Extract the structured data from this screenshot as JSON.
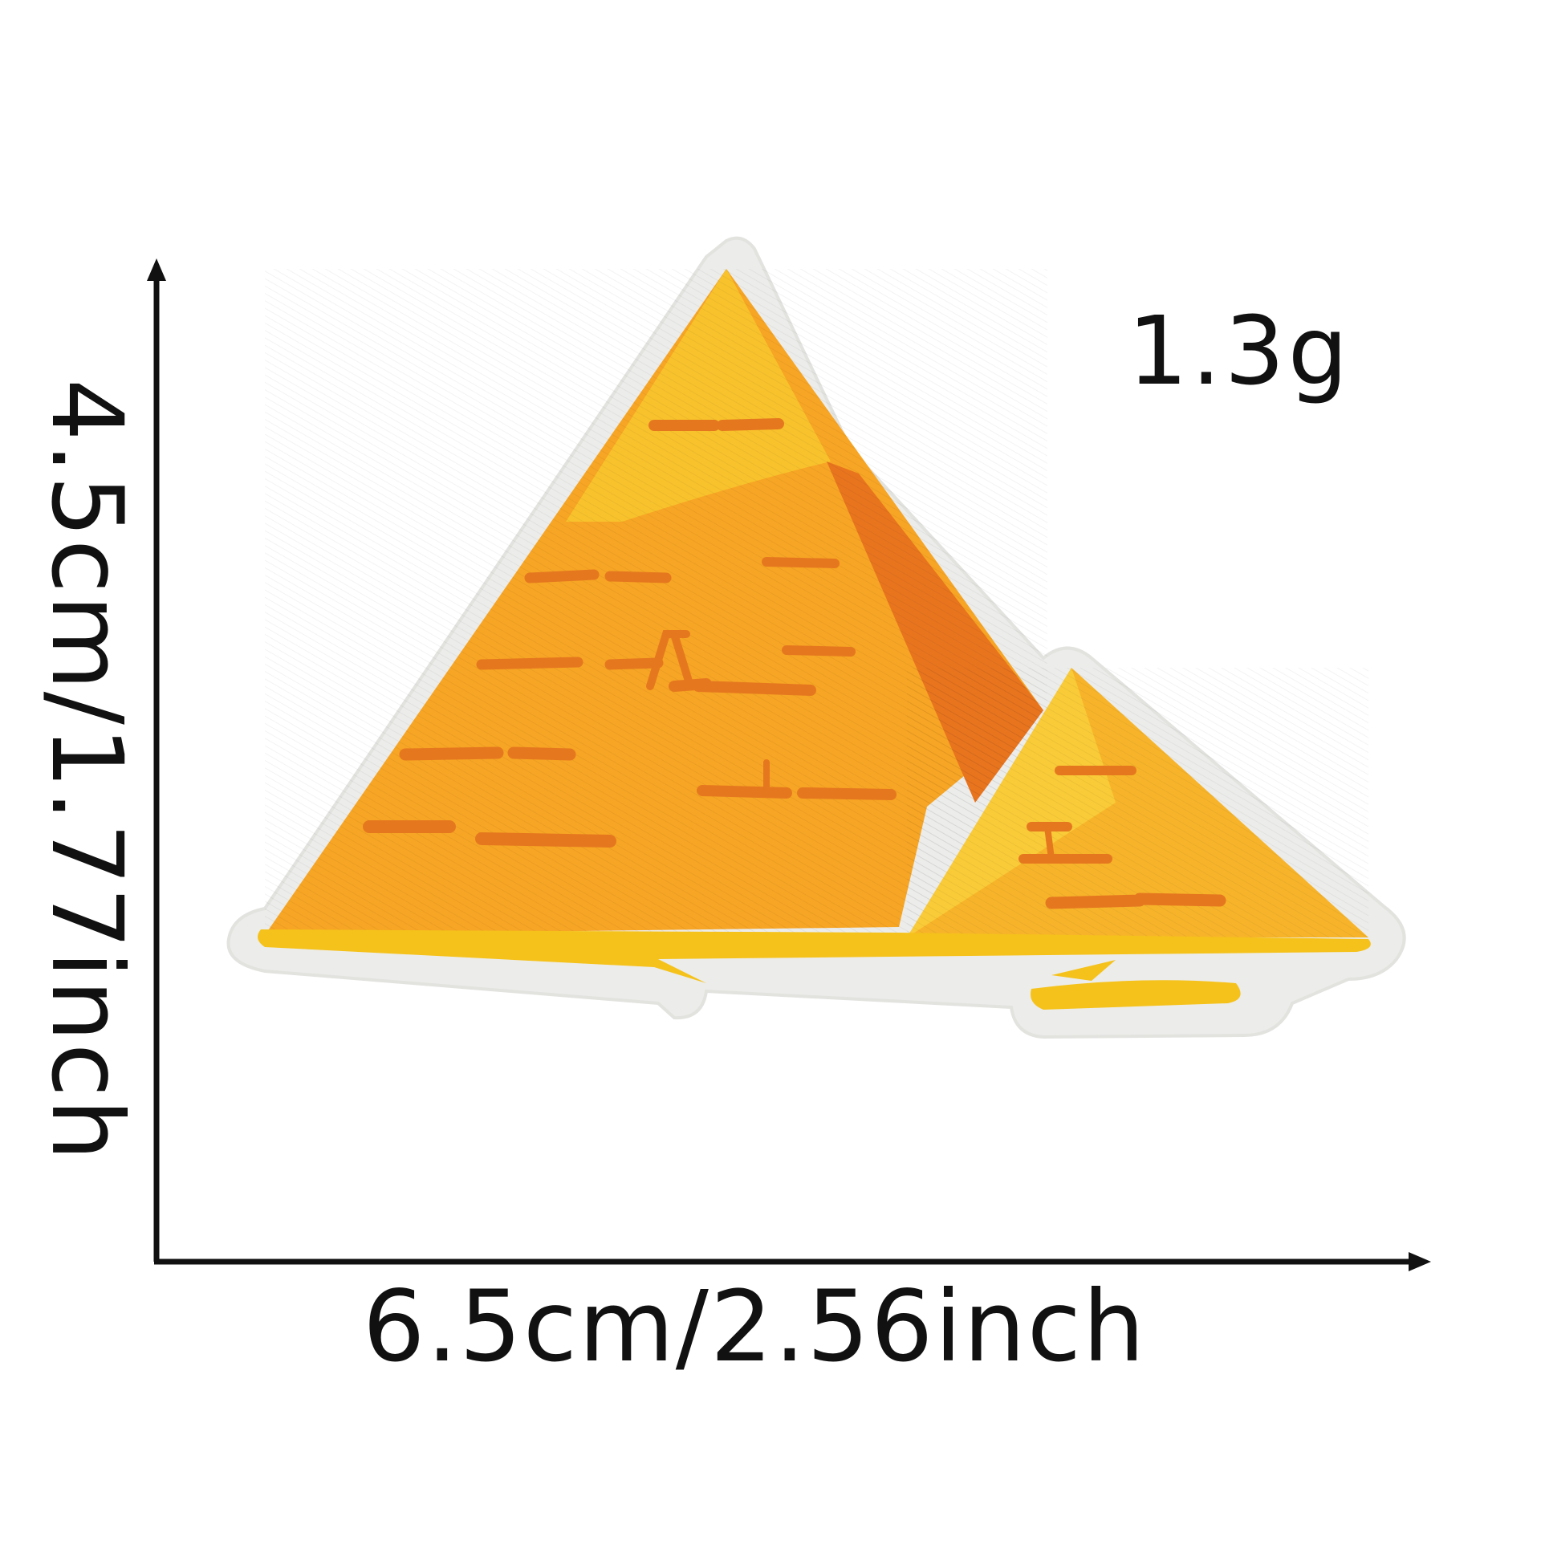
{
  "product": {
    "weight": "1.3g",
    "width_dimension": "6.5cm/2.56inch",
    "height_dimension": "4.5cm/1.77inch"
  },
  "colors": {
    "background": "#ffffff",
    "felt_border": "#ececea",
    "pyramid_light": "#f8c22c",
    "pyramid_mid": "#f7a524",
    "pyramid_shadow": "#e8741e",
    "stitch_lines": "#e5781f",
    "ground": "#f5c21b",
    "text": "#111111"
  }
}
